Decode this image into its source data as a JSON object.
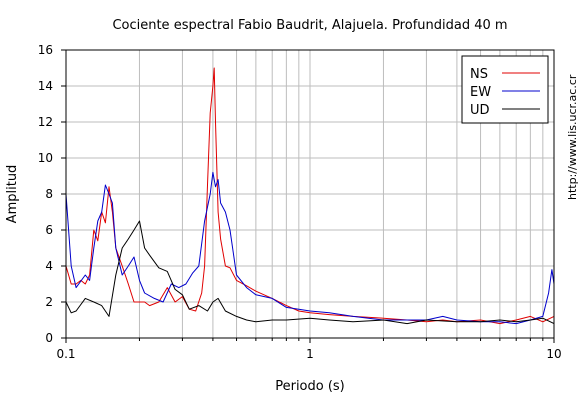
{
  "chart_data": {
    "type": "line",
    "title": "Cociente espectral Fabio Baudrit, Alajuela. Profundidad 40 m",
    "xlabel": "Periodo (s)",
    "ylabel": "Amplitud",
    "xscale": "log",
    "xlim": [
      0.1,
      10
    ],
    "ylim": [
      0,
      16
    ],
    "xticks": [
      0.1,
      1,
      10
    ],
    "xtick_labels": [
      "0.1",
      "1",
      "10"
    ],
    "yticks": [
      0,
      2,
      4,
      6,
      8,
      10,
      12,
      14,
      16
    ],
    "grid": true,
    "legend_position": "top-right",
    "series": [
      {
        "name": "NS",
        "color": "#e00000",
        "x": [
          0.1,
          0.105,
          0.11,
          0.115,
          0.12,
          0.125,
          0.13,
          0.135,
          0.14,
          0.145,
          0.15,
          0.155,
          0.16,
          0.17,
          0.18,
          0.19,
          0.2,
          0.21,
          0.22,
          0.24,
          0.26,
          0.28,
          0.3,
          0.32,
          0.34,
          0.36,
          0.37,
          0.38,
          0.39,
          0.4,
          0.405,
          0.41,
          0.42,
          0.43,
          0.45,
          0.47,
          0.5,
          0.55,
          0.6,
          0.7,
          0.8,
          0.9,
          1.0,
          1.2,
          1.5,
          2.0,
          2.5,
          3.0,
          3.5,
          4.0,
          5.0,
          6.0,
          7.0,
          8.0,
          9.0,
          10.0
        ],
        "y": [
          4.0,
          3.0,
          3.0,
          3.2,
          3.0,
          3.5,
          6.0,
          5.4,
          7.0,
          6.4,
          8.4,
          7.0,
          5.0,
          4.0,
          3.0,
          2.0,
          2.0,
          2.0,
          1.8,
          2.0,
          2.8,
          2.0,
          2.3,
          1.6,
          1.5,
          2.5,
          4.0,
          8.5,
          12.5,
          14.0,
          15.0,
          12.0,
          7.0,
          5.5,
          4.0,
          3.9,
          3.2,
          2.9,
          2.6,
          2.2,
          1.8,
          1.5,
          1.4,
          1.3,
          1.2,
          1.1,
          1.0,
          0.9,
          1.0,
          0.9,
          1.0,
          0.8,
          1.0,
          1.2,
          0.9,
          1.2
        ]
      },
      {
        "name": "EW",
        "color": "#0000cc",
        "x": [
          0.1,
          0.105,
          0.11,
          0.12,
          0.125,
          0.13,
          0.135,
          0.14,
          0.145,
          0.15,
          0.155,
          0.16,
          0.17,
          0.18,
          0.19,
          0.2,
          0.21,
          0.23,
          0.25,
          0.27,
          0.29,
          0.31,
          0.33,
          0.35,
          0.37,
          0.39,
          0.4,
          0.41,
          0.42,
          0.43,
          0.45,
          0.47,
          0.5,
          0.55,
          0.6,
          0.7,
          0.8,
          0.9,
          1.0,
          1.2,
          1.5,
          2.0,
          2.5,
          3.0,
          3.5,
          4.0,
          5.0,
          6.0,
          7.0,
          8.0,
          9.0,
          9.5,
          9.8,
          10.0
        ],
        "y": [
          8.0,
          4.0,
          2.8,
          3.5,
          3.2,
          5.0,
          6.5,
          7.0,
          8.5,
          8.0,
          7.5,
          5.0,
          3.5,
          4.0,
          4.5,
          3.2,
          2.5,
          2.2,
          2.0,
          3.0,
          2.8,
          3.0,
          3.6,
          4.0,
          6.5,
          8.0,
          9.2,
          8.4,
          8.8,
          7.5,
          7.0,
          6.0,
          3.5,
          2.8,
          2.4,
          2.2,
          1.7,
          1.6,
          1.5,
          1.4,
          1.2,
          1.0,
          1.0,
          1.0,
          1.2,
          1.0,
          0.9,
          0.9,
          0.8,
          1.0,
          1.2,
          2.5,
          3.8,
          3.0
        ]
      },
      {
        "name": "UD",
        "color": "#000000",
        "x": [
          0.1,
          0.105,
          0.11,
          0.12,
          0.13,
          0.14,
          0.15,
          0.16,
          0.17,
          0.18,
          0.19,
          0.2,
          0.21,
          0.22,
          0.24,
          0.26,
          0.28,
          0.3,
          0.32,
          0.35,
          0.38,
          0.4,
          0.42,
          0.45,
          0.5,
          0.55,
          0.6,
          0.7,
          0.8,
          1.0,
          1.2,
          1.5,
          2.0,
          2.5,
          3.0,
          4.0,
          5.0,
          6.0,
          7.0,
          8.0,
          9.0,
          10.0
        ],
        "y": [
          2.0,
          1.4,
          1.5,
          2.2,
          2.0,
          1.8,
          1.2,
          3.5,
          5.0,
          5.5,
          6.0,
          6.5,
          5.0,
          4.6,
          3.9,
          3.7,
          2.7,
          2.4,
          1.6,
          1.8,
          1.5,
          2.0,
          2.2,
          1.5,
          1.2,
          1.0,
          0.9,
          1.0,
          1.0,
          1.1,
          1.0,
          0.9,
          1.0,
          0.8,
          1.0,
          0.9,
          0.9,
          1.0,
          0.9,
          1.0,
          1.1,
          0.8
        ]
      }
    ],
    "side_credit": "http://www.lis.ucr.ac.cr"
  }
}
